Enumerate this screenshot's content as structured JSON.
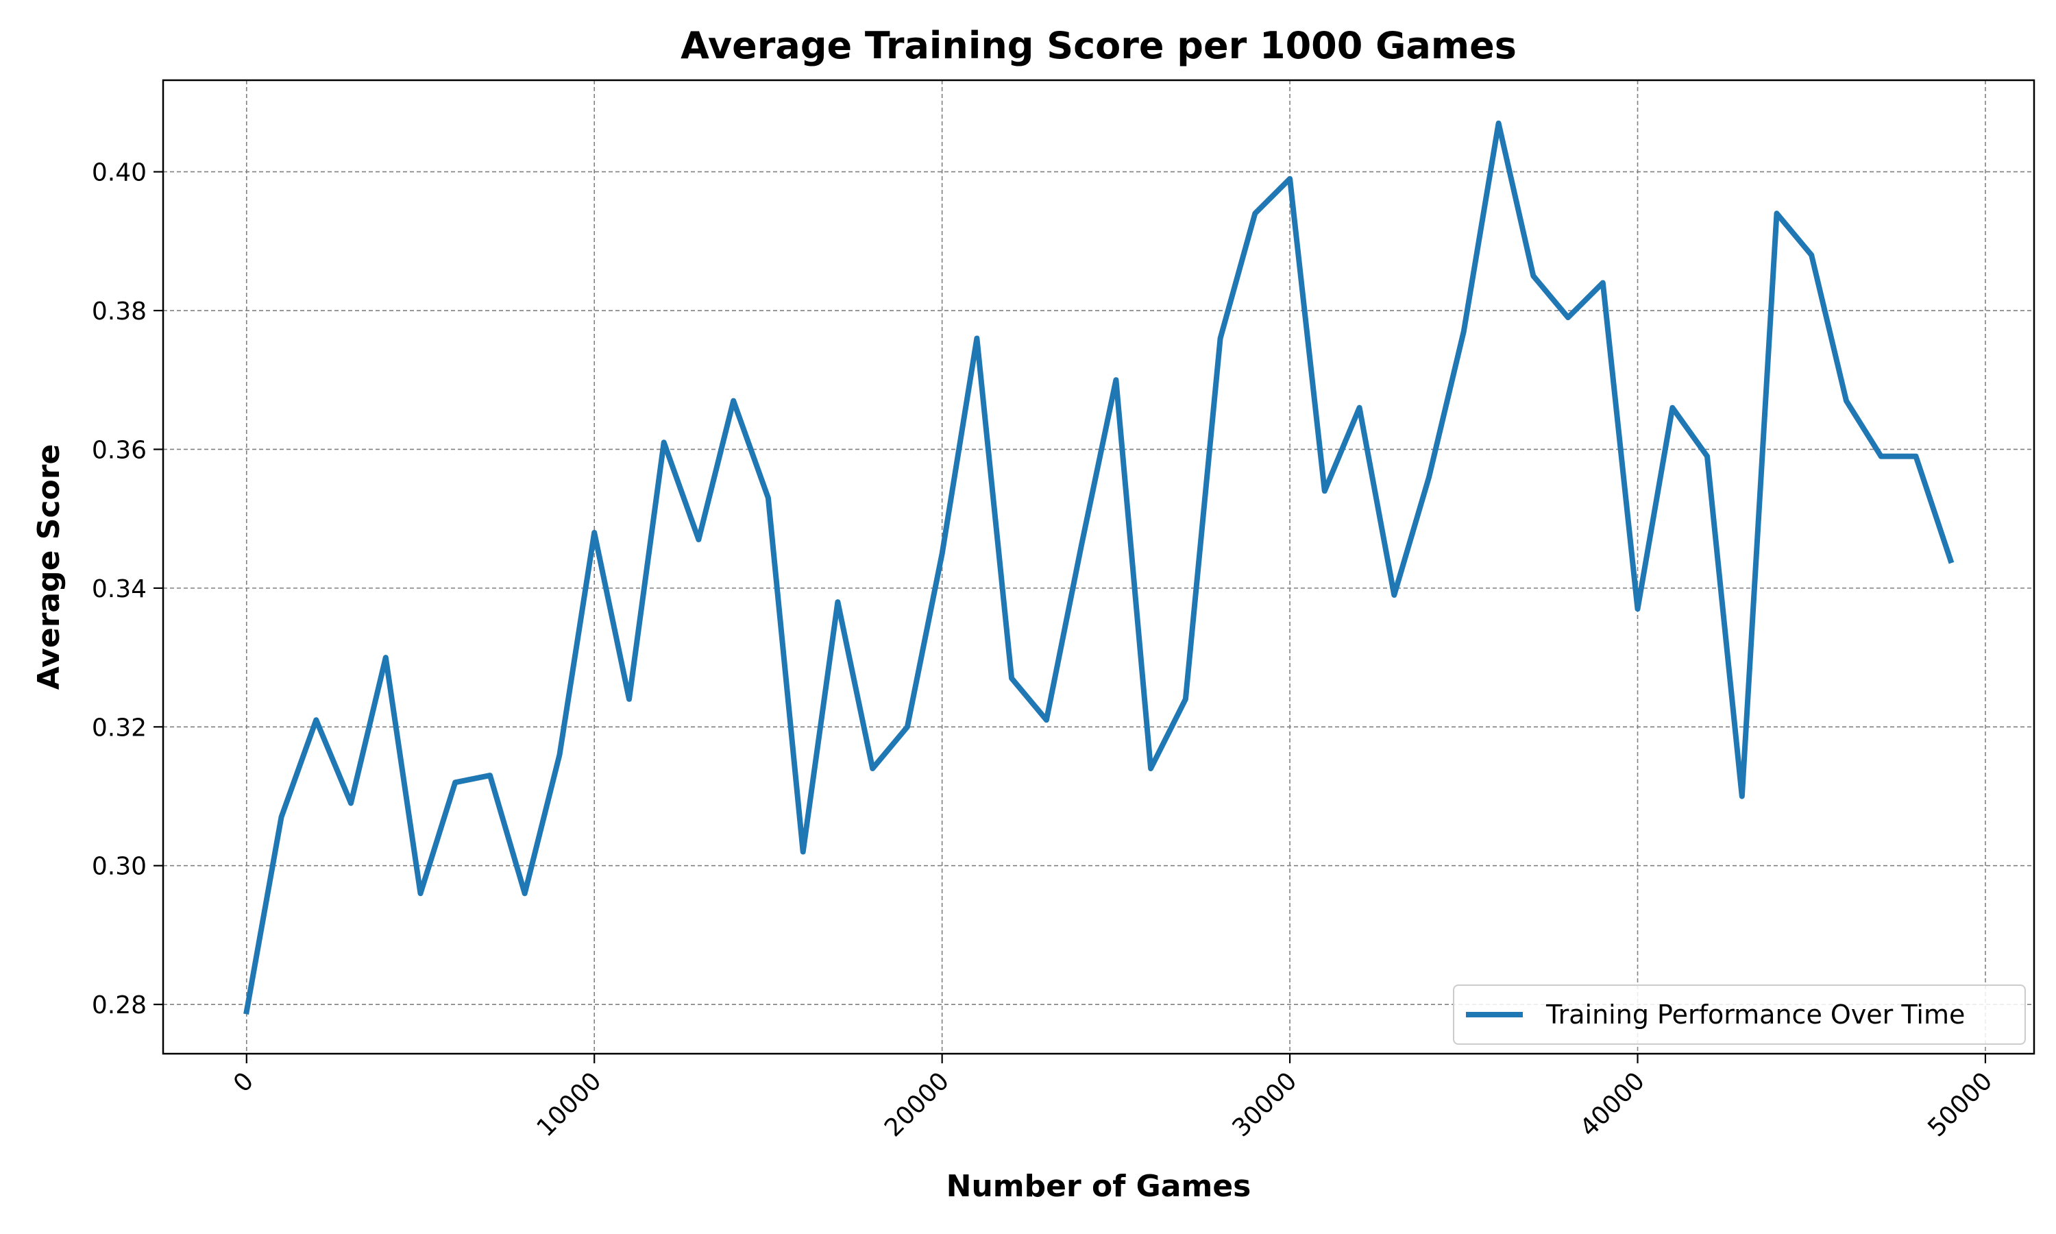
{
  "chart_data": {
    "type": "line",
    "title": "Average Training Score per 1000 Games",
    "xlabel": "Number of Games",
    "ylabel": "Average Score",
    "xlim": [
      -2400,
      51400
    ],
    "ylim": [
      0.2729,
      0.4132
    ],
    "xticks": [
      0,
      10000,
      20000,
      30000,
      40000,
      50000
    ],
    "xtick_labels": [
      "0",
      "10000",
      "20000",
      "30000",
      "40000",
      "50000"
    ],
    "yticks": [
      0.28,
      0.3,
      0.32,
      0.34,
      0.36,
      0.38,
      0.4
    ],
    "ytick_labels": [
      "0.28",
      "0.30",
      "0.32",
      "0.34",
      "0.36",
      "0.38",
      "0.40"
    ],
    "grid": true,
    "legend_position": "lower-right",
    "series": [
      {
        "name": "Training Performance Over Time",
        "color": "#1f77b4",
        "x": [
          0,
          1000,
          2000,
          3000,
          4000,
          5000,
          6000,
          7000,
          8000,
          9000,
          10000,
          11000,
          12000,
          13000,
          14000,
          15000,
          16000,
          17000,
          18000,
          19000,
          20000,
          21000,
          22000,
          23000,
          24000,
          25000,
          26000,
          27000,
          28000,
          29000,
          30000,
          31000,
          32000,
          33000,
          34000,
          35000,
          36000,
          37000,
          38000,
          39000,
          40000,
          41000,
          42000,
          43000,
          44000,
          45000,
          46000,
          47000,
          48000,
          49000
        ],
        "y": [
          0.279,
          0.307,
          0.321,
          0.309,
          0.33,
          0.296,
          0.312,
          0.313,
          0.296,
          0.316,
          0.348,
          0.324,
          0.361,
          0.347,
          0.367,
          0.353,
          0.302,
          0.338,
          0.314,
          0.32,
          0.345,
          0.376,
          0.327,
          0.321,
          0.346,
          0.37,
          0.314,
          0.324,
          0.376,
          0.394,
          0.399,
          0.354,
          0.366,
          0.339,
          0.356,
          0.377,
          0.407,
          0.385,
          0.379,
          0.384,
          0.337,
          0.366,
          0.359,
          0.31,
          0.394,
          0.388,
          0.367,
          0.359,
          0.359,
          0.344
        ]
      }
    ]
  }
}
